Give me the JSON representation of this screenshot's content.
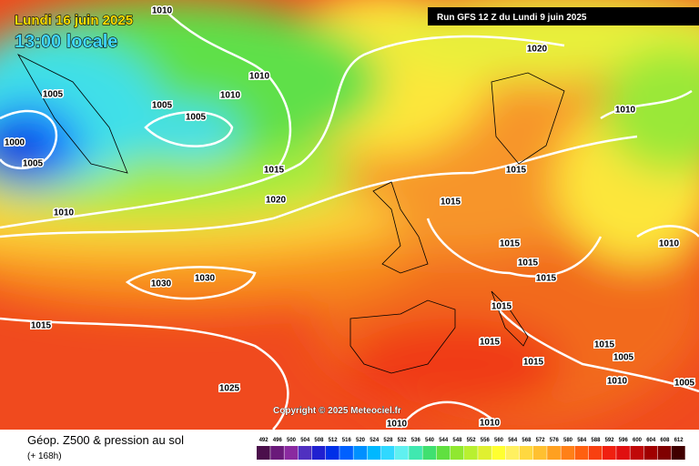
{
  "header": {
    "date": "Lundi 16 juin 2025",
    "time": "13:00 locale",
    "run": "Run GFS 12 Z du Lundi 9 juin 2025"
  },
  "isobar_labels": [
    1010,
    1005,
    1005,
    1005,
    1000,
    1005,
    1010,
    1010,
    1010,
    1015,
    1020,
    1020,
    1010,
    1015,
    1015,
    1015,
    1015,
    1015,
    1010,
    1030,
    1030,
    1015,
    1015,
    1015,
    1015,
    1015,
    1005,
    1010,
    1005,
    1025,
    1010,
    1010
  ],
  "copyright": "Copyright © 2025 Meteociel.fr",
  "footer": {
    "title": "Géop. Z500 & pression au sol",
    "lead": "(+ 168h)"
  },
  "legend": {
    "values": [
      492,
      496,
      500,
      504,
      508,
      512,
      516,
      520,
      524,
      528,
      532,
      536,
      540,
      544,
      548,
      552,
      556,
      560,
      564,
      568,
      572,
      576,
      580,
      584,
      588,
      592,
      596,
      600,
      604,
      608,
      612
    ],
    "colors": [
      "#4b0f4b",
      "#6a1a7a",
      "#8a2aa0",
      "#5030c0",
      "#2020d0",
      "#0030e8",
      "#0060ff",
      "#0090ff",
      "#00b8ff",
      "#30d8ff",
      "#60f0f0",
      "#40e8b0",
      "#40e070",
      "#60e040",
      "#90e830",
      "#b8f030",
      "#e0f030",
      "#ffff30",
      "#fff060",
      "#ffd840",
      "#ffc030",
      "#ffa020",
      "#ff8018",
      "#ff6010",
      "#f84010",
      "#f02010",
      "#e01010",
      "#c00808",
      "#a00000",
      "#800000",
      "#400000"
    ]
  }
}
